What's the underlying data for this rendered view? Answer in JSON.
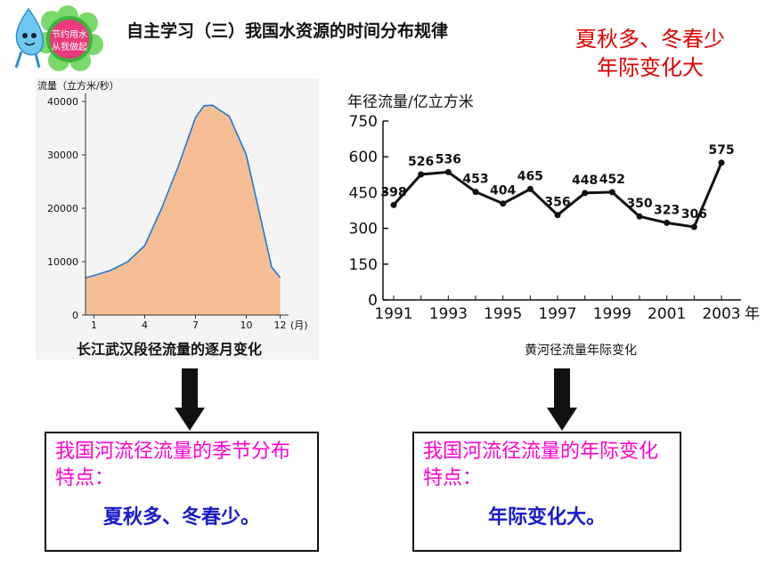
{
  "header": {
    "title": "自主学习（三）我国水资源的时间分布规律",
    "logo_text": [
      "节约用水",
      "从我做起"
    ],
    "note_lines": [
      "夏秋多、冬春少",
      "年际变化大"
    ]
  },
  "chart_data": [
    {
      "type": "area",
      "title": "长江武汉段径流量的逐月变化",
      "ylabel": "流量（立方米/秒）",
      "xlabel": "",
      "x_unit": "(月)",
      "x_range": [
        0.5,
        12.5
      ],
      "ylim": [
        0,
        40000
      ],
      "y_ticks": [
        "0",
        "10000",
        "20000",
        "30000",
        "40000"
      ],
      "x_ticks": [
        "1",
        "4",
        "7",
        "10",
        "12"
      ],
      "x": [
        0.5,
        1,
        2,
        3,
        4,
        5,
        6,
        7,
        7.5,
        8,
        9,
        10,
        11,
        11.5,
        12
      ],
      "y": [
        7000,
        7400,
        8400,
        10000,
        13000,
        20000,
        28000,
        37000,
        39200,
        39300,
        37200,
        30000,
        16000,
        9000,
        7000
      ],
      "fill": "#f6be94",
      "line": "#1e7ad8",
      "grid": false
    },
    {
      "type": "line",
      "title": "黄河径流量年际变化",
      "ylabel": "年径流量/亿立方米",
      "x_unit": "年",
      "ylim": [
        0,
        750
      ],
      "y_ticks": [
        "0",
        "150",
        "300",
        "450",
        "600",
        "750"
      ],
      "x_ticks": [
        "1991",
        "1993",
        "1995",
        "1997",
        "1999",
        "2001",
        "2003"
      ],
      "x": [
        1991,
        1992,
        1993,
        1994,
        1995,
        1996,
        1997,
        1998,
        1999,
        2000,
        2001,
        2002,
        2003
      ],
      "values": [
        398,
        526,
        536,
        453,
        404,
        465,
        356,
        448,
        452,
        350,
        323,
        306,
        575
      ],
      "labels": [
        "398",
        "526",
        "536",
        "453",
        "404",
        "465",
        "356",
        "448",
        "452",
        "350",
        "323",
        "306",
        "575"
      ],
      "grid": false
    }
  ],
  "boxes": {
    "left": {
      "question": "我国河流径流量的季节分布特点：",
      "answer": "夏秋多、冬春少。"
    },
    "right": {
      "question": "我国河流径流量的年际变化特点：",
      "answer": "年际变化大。"
    }
  },
  "colors": {
    "note": "#e00000",
    "question": "#ff00cc",
    "answer": "#1a1acc",
    "area_fill": "#f6be94",
    "area_line": "#1e7ad8"
  }
}
